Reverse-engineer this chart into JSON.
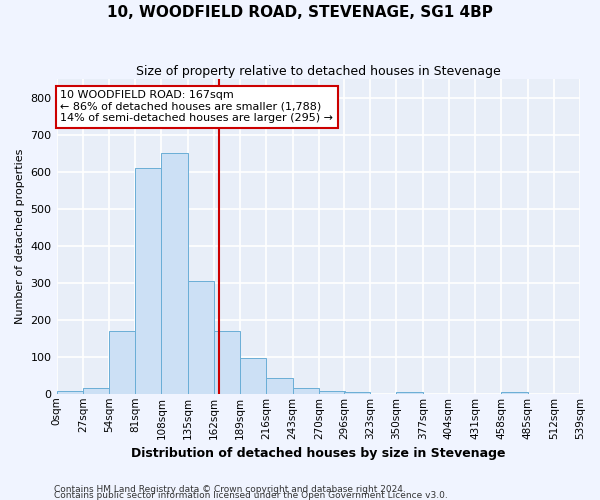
{
  "title": "10, WOODFIELD ROAD, STEVENAGE, SG1 4BP",
  "subtitle": "Size of property relative to detached houses in Stevenage",
  "xlabel": "Distribution of detached houses by size in Stevenage",
  "ylabel": "Number of detached properties",
  "bar_color": "#cce0f5",
  "bar_edge_color": "#6aaed6",
  "background_color": "#e8eef8",
  "grid_color": "#ffffff",
  "property_size": 167,
  "property_line_color": "#cc0000",
  "annotation_text": "10 WOODFIELD ROAD: 167sqm\n← 86% of detached houses are smaller (1,788)\n14% of semi-detached houses are larger (295) →",
  "annotation_box_color": "#cc0000",
  "footer_line1": "Contains HM Land Registry data © Crown copyright and database right 2024.",
  "footer_line2": "Contains public sector information licensed under the Open Government Licence v3.0.",
  "bin_edges": [
    0,
    27,
    54,
    81,
    108,
    135,
    162,
    189,
    216,
    243,
    270,
    296,
    323,
    350,
    377,
    404,
    431,
    458,
    485,
    512,
    539
  ],
  "bin_labels": [
    "0sqm",
    "27sqm",
    "54sqm",
    "81sqm",
    "108sqm",
    "135sqm",
    "162sqm",
    "189sqm",
    "216sqm",
    "243sqm",
    "270sqm",
    "296sqm",
    "323sqm",
    "350sqm",
    "377sqm",
    "404sqm",
    "431sqm",
    "458sqm",
    "485sqm",
    "512sqm",
    "539sqm"
  ],
  "bar_heights": [
    8,
    15,
    170,
    610,
    650,
    305,
    170,
    97,
    42,
    15,
    7,
    5,
    0,
    5,
    0,
    0,
    0,
    5,
    0,
    0
  ],
  "ylim": [
    0,
    850
  ],
  "yticks": [
    0,
    100,
    200,
    300,
    400,
    500,
    600,
    700,
    800
  ]
}
